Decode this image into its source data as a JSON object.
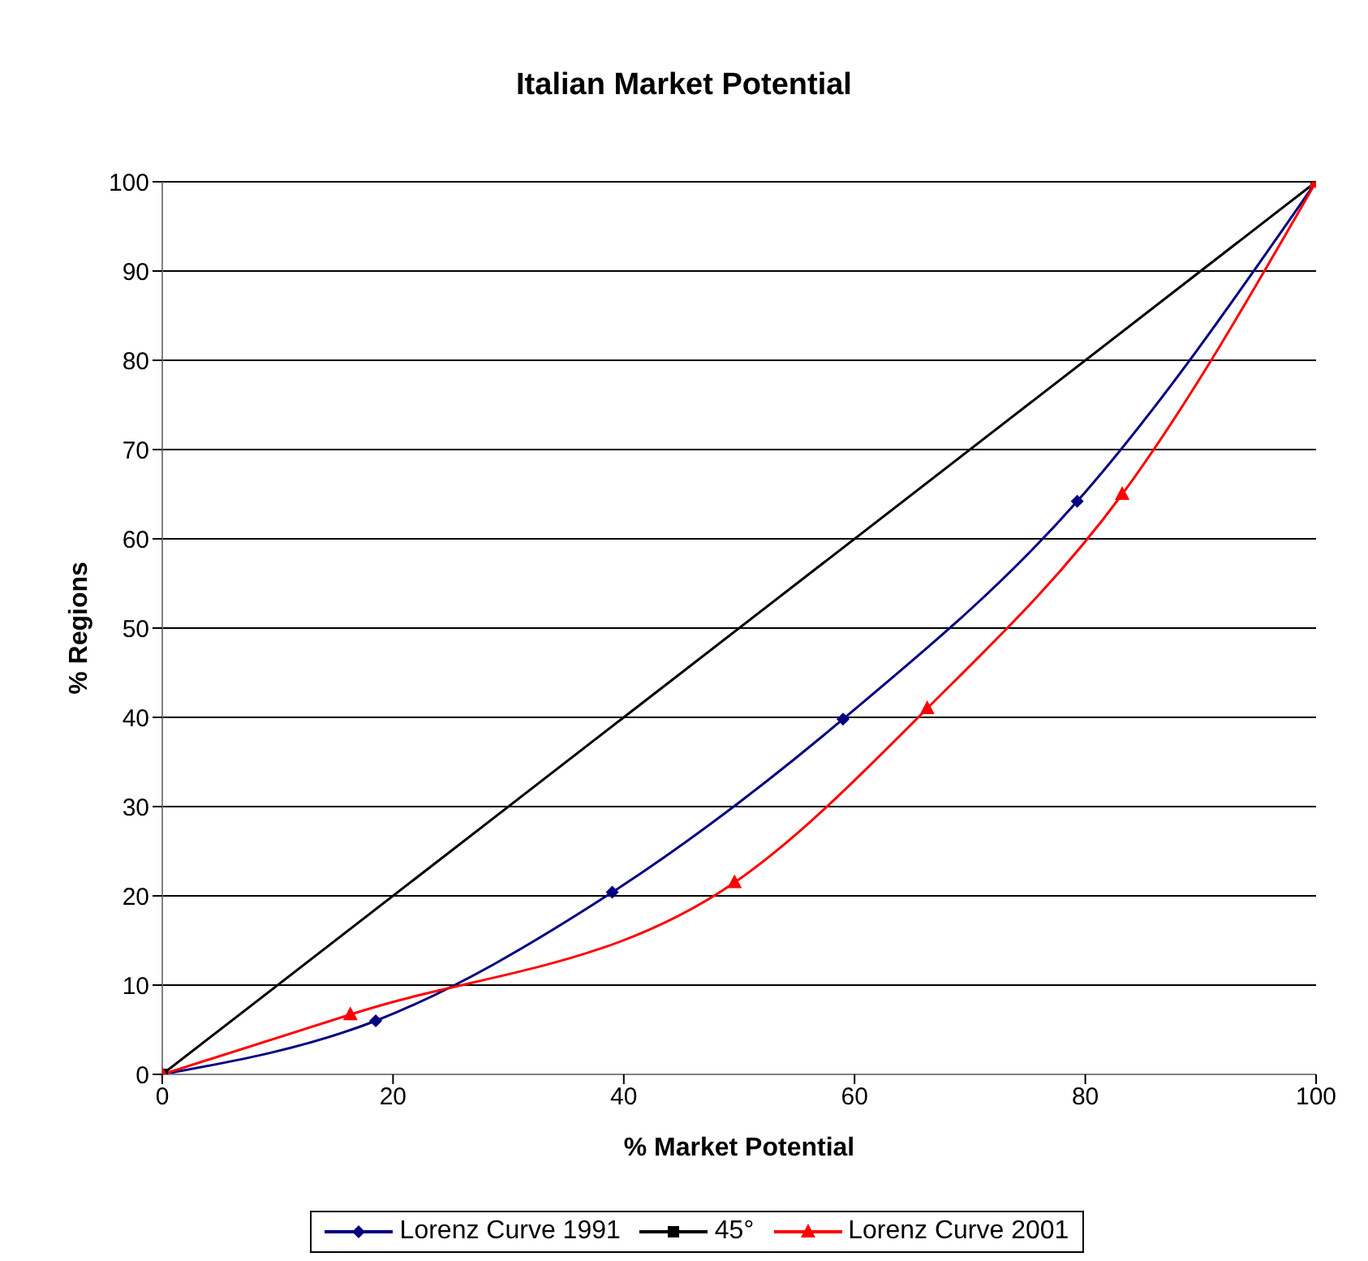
{
  "chart_data": {
    "type": "line",
    "title": "Italian Market Potential",
    "xlabel": "% Market Potential",
    "ylabel": "% Regions",
    "xlim": [
      0,
      100
    ],
    "xticks": [
      0,
      20,
      40,
      60,
      80,
      100
    ],
    "ylim": [
      0,
      100
    ],
    "yticks": [
      0,
      10,
      20,
      30,
      40,
      50,
      60,
      70,
      80,
      90,
      100
    ],
    "grid": "y",
    "legend": "bottom",
    "series": [
      {
        "name": "Lorenz Curve 1991",
        "color": "#000080",
        "marker": "diamond",
        "x": [
          0,
          18.5,
          39,
          59,
          79.3,
          100
        ],
        "values": [
          0,
          6,
          20.4,
          39.8,
          64.2,
          100
        ]
      },
      {
        "name": "45°",
        "color": "#000000",
        "marker": "square",
        "x": [
          0,
          100
        ],
        "values": [
          0,
          100
        ]
      },
      {
        "name": "Lorenz Curve 2001",
        "color": "#ff0000",
        "marker": "triangle",
        "x": [
          0,
          16.3,
          49.6,
          66.3,
          83.2,
          100
        ],
        "values": [
          0,
          6.7,
          21.5,
          41,
          65,
          100
        ]
      }
    ]
  }
}
